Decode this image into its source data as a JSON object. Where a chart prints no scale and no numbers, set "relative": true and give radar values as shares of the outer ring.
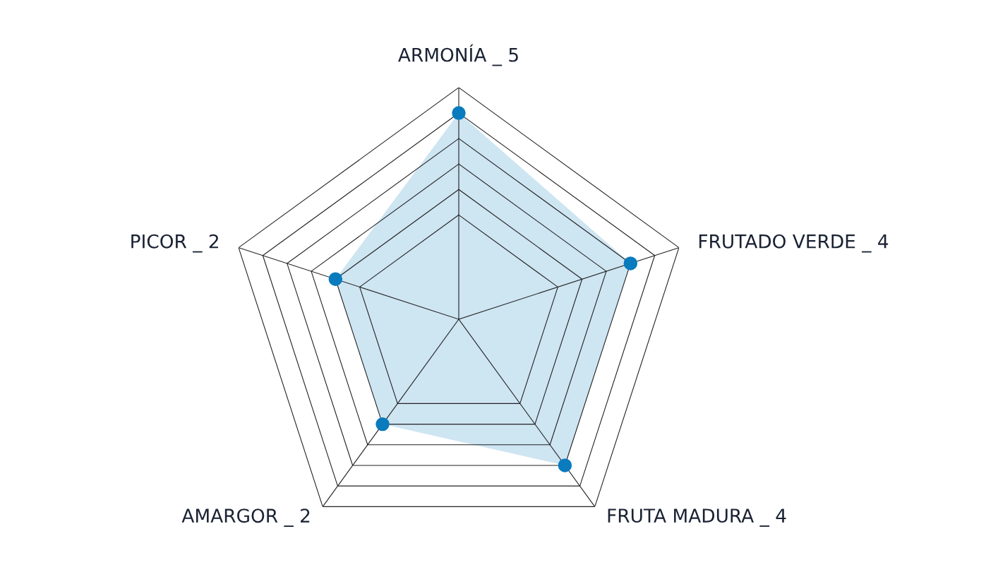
{
  "chart_data": {
    "type": "radar",
    "categories": [
      "ARMONÍA _ 5",
      "FRUTADO VERDE _ 4",
      "FRUTA MADURA _ 4",
      "AMARGOR _ 2",
      "PICOR _ 2"
    ],
    "series": [
      {
        "color": "#0a7bbd",
        "values": [
          0.89,
          0.78,
          0.78,
          0.56,
          0.56
        ]
      }
    ],
    "relative": true,
    "marker": "circle",
    "grid": true
  }
}
